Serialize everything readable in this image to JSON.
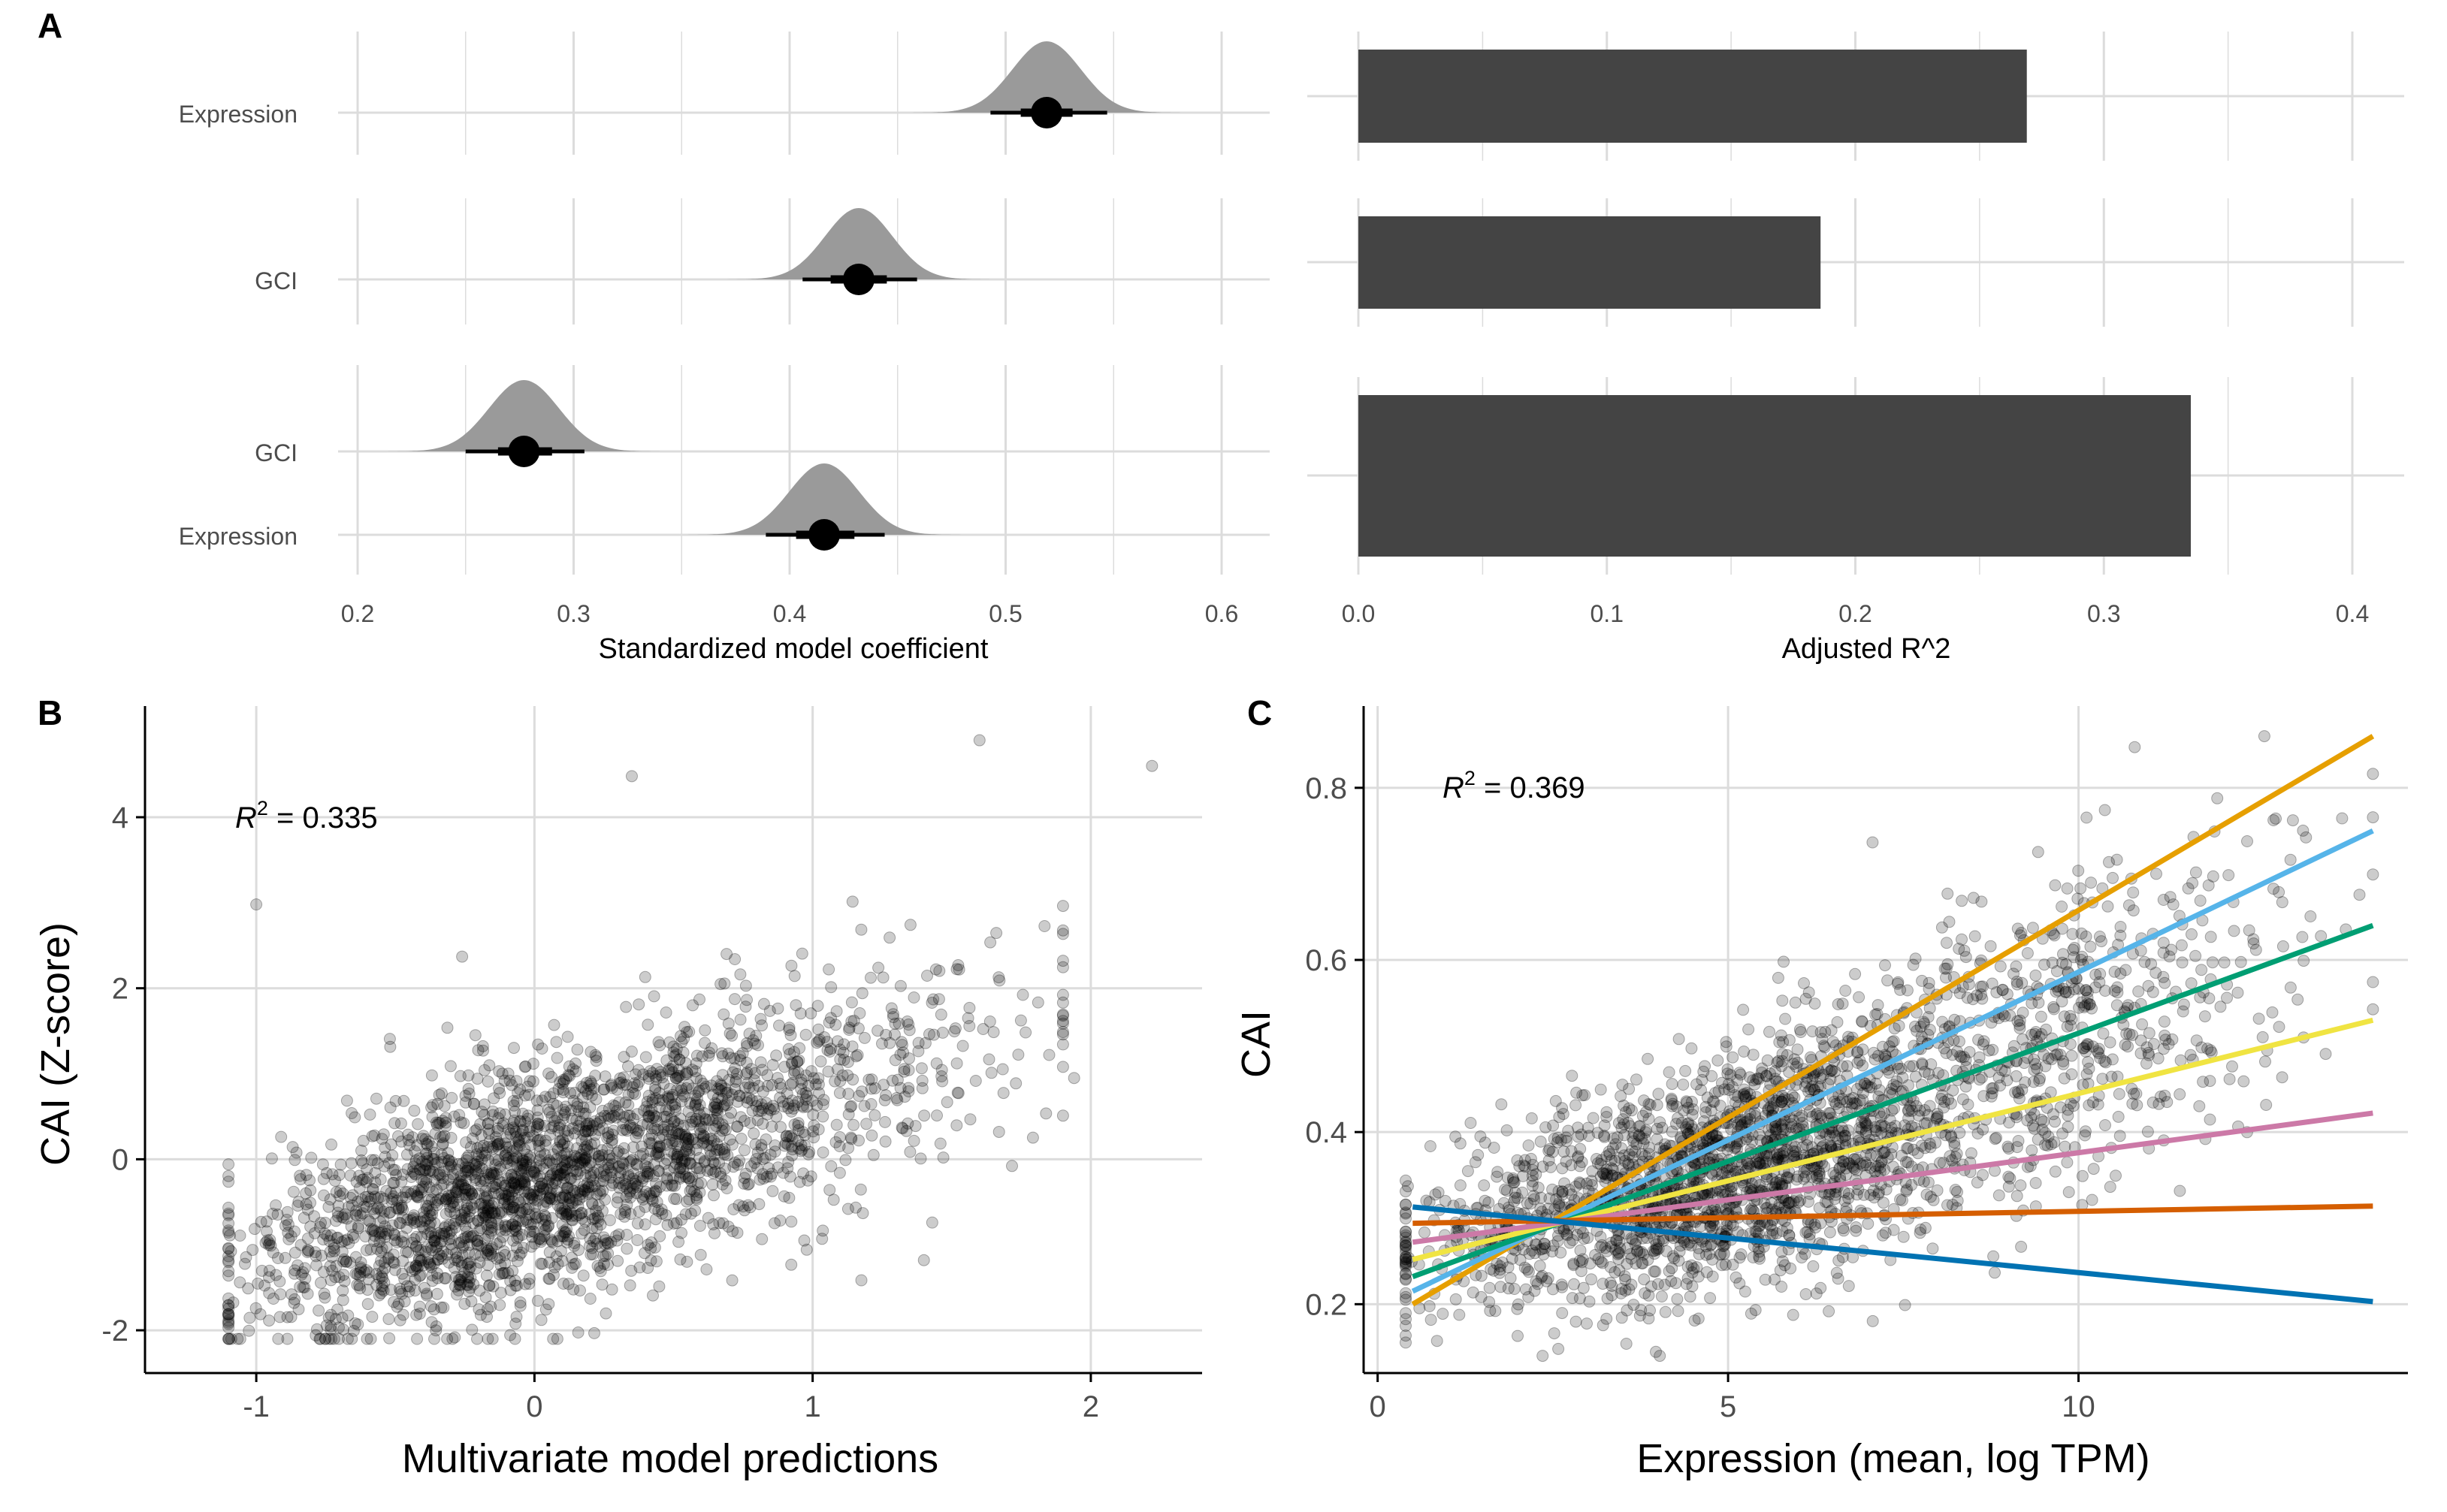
{
  "panels": {
    "A": "A",
    "B": "B",
    "C": "C"
  },
  "chart_data": [
    {
      "id": "A_left",
      "type": "interval",
      "xlabel": "Standardized model coefficient",
      "xlim": [
        0.2,
        0.6
      ],
      "xticks": [
        "0.2",
        "0.3",
        "0.4",
        "0.5",
        "0.6"
      ],
      "facets": [
        {
          "rows": [
            {
              "label": "Expression",
              "estimate": 0.519,
              "thin": [
                0.493,
                0.547
              ],
              "thick": [
                0.507,
                0.531
              ]
            }
          ]
        },
        {
          "rows": [
            {
              "label": "GCI",
              "estimate": 0.432,
              "thin": [
                0.406,
                0.459
              ],
              "thick": [
                0.419,
                0.445
              ]
            }
          ]
        },
        {
          "rows": [
            {
              "label": "GCI",
              "estimate": 0.277,
              "thin": [
                0.25,
                0.305
              ],
              "thick": [
                0.265,
                0.29
              ]
            },
            {
              "label": "Expression",
              "estimate": 0.416,
              "thin": [
                0.389,
                0.444
              ],
              "thick": [
                0.403,
                0.43
              ]
            }
          ]
        }
      ]
    },
    {
      "id": "A_right",
      "type": "bar",
      "orientation": "horizontal",
      "xlabel": "Adjusted R^2",
      "xlim": [
        0.0,
        0.4
      ],
      "xticks": [
        "0.0",
        "0.1",
        "0.2",
        "0.3",
        "0.4"
      ],
      "values": [
        0.269,
        0.186,
        0.335
      ],
      "bar_color": "#444444"
    },
    {
      "id": "B",
      "type": "scatter",
      "xlabel": "Multivariate model predictions",
      "ylabel": "CAI (Z-score)",
      "xlim": [
        -1.4,
        2.4
      ],
      "ylim": [
        -2.5,
        5.3
      ],
      "xticks": [
        "-1",
        "0",
        "1",
        "2"
      ],
      "yticks": [
        "-2",
        "0",
        "2",
        "4"
      ],
      "annotation": {
        "base": "R",
        "sup": "2",
        "rest": " = 0.335"
      },
      "n_points": 2600,
      "trend": {
        "slope": 1.0,
        "intercept": -0.25,
        "sd": 0.68
      },
      "outliers": [
        [
          2.22,
          4.6
        ],
        [
          1.6,
          4.9
        ],
        [
          1.94,
          0.95
        ],
        [
          1.67,
          0.32
        ],
        [
          -0.33,
          0.45
        ],
        [
          -1.0,
          2.98
        ],
        [
          -0.26,
          2.37
        ],
        [
          0.35,
          4.48
        ],
        [
          1.43,
          -0.74
        ],
        [
          1.4,
          -1.18
        ],
        [
          0.97,
          -0.95
        ]
      ]
    },
    {
      "id": "C",
      "type": "scatter",
      "xlabel": "Expression (mean, log TPM)",
      "ylabel": "CAI",
      "xlim": [
        -0.2,
        14.7
      ],
      "ylim": [
        0.12,
        0.895
      ],
      "xticks": [
        "0",
        "5",
        "10"
      ],
      "yticks": [
        "0.2",
        "0.4",
        "0.6",
        "0.8"
      ],
      "annotation": {
        "base": "R",
        "sup": "2",
        "rest": " = 0.369"
      },
      "n_points": 2600,
      "pivot": [
        2.4,
        0.296
      ],
      "lines": [
        {
          "color": "#E69F00",
          "x": [
            0.5,
            14.2
          ],
          "y": [
            0.2,
            0.86
          ]
        },
        {
          "color": "#56B4E9",
          "x": [
            0.5,
            14.2
          ],
          "y": [
            0.215,
            0.75
          ]
        },
        {
          "color": "#009E73",
          "x": [
            0.5,
            14.2
          ],
          "y": [
            0.232,
            0.64
          ]
        },
        {
          "color": "#F0E442",
          "x": [
            0.5,
            14.2
          ],
          "y": [
            0.252,
            0.53
          ]
        },
        {
          "color": "#CC79A7",
          "x": [
            0.5,
            14.2
          ],
          "y": [
            0.272,
            0.422
          ]
        },
        {
          "color": "#D55E00",
          "x": [
            0.5,
            14.2
          ],
          "y": [
            0.294,
            0.314
          ]
        },
        {
          "color": "#0072B2",
          "x": [
            0.5,
            14.2
          ],
          "y": [
            0.313,
            0.203
          ]
        }
      ]
    }
  ]
}
